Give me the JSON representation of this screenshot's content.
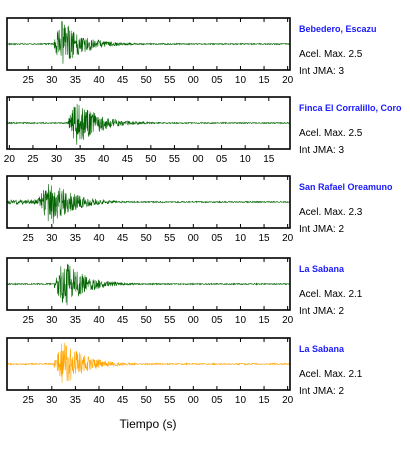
{
  "xlabel": "Tiempo (s)",
  "chart_data": [
    {
      "type": "line",
      "station": "Bebedero, Escazu",
      "acel_label": "Acel. Max. 2.5",
      "int_label": "Int JMA: 3",
      "trace_color": "#006400",
      "onset_s": 30.5,
      "peak_s": 32,
      "peak_amplitude": 1.0,
      "x_ticks": [
        "25",
        "30",
        "35",
        "40",
        "45",
        "50",
        "55",
        "00",
        "05",
        "10",
        "15",
        "20"
      ],
      "x_tick_positions_s": [
        25,
        30,
        35,
        40,
        45,
        50,
        55,
        60,
        65,
        70,
        75,
        80
      ],
      "xlim": [
        20.5,
        80.5
      ]
    },
    {
      "type": "line",
      "station": "Finca El Corralillo, Coro",
      "acel_label": "Acel. Max. 2.5",
      "int_label": "Int JMA: 3",
      "trace_color": "#006400",
      "onset_s": 32.5,
      "peak_s": 34.5,
      "peak_amplitude": 1.0,
      "x_ticks": [
        "20",
        "25",
        "30",
        "35",
        "40",
        "45",
        "50",
        "55",
        "00",
        "05",
        "10",
        "15"
      ],
      "x_tick_positions_s": [
        20,
        25,
        30,
        35,
        40,
        45,
        50,
        55,
        60,
        65,
        70,
        75
      ],
      "xlim": [
        19.5,
        79.5
      ]
    },
    {
      "type": "line",
      "station": "San Rafael Oreamuno",
      "acel_label": "Acel. Max. 2.3",
      "int_label": "Int JMA: 2",
      "trace_color": "#006400",
      "onset_s": 27,
      "peak_s": 30,
      "peak_amplitude": 1.0,
      "x_ticks": [
        "25",
        "30",
        "35",
        "40",
        "45",
        "50",
        "55",
        "00",
        "05",
        "10",
        "15",
        "20"
      ],
      "x_tick_positions_s": [
        25,
        30,
        35,
        40,
        45,
        50,
        55,
        60,
        65,
        70,
        75,
        80
      ],
      "xlim": [
        20.5,
        80.5
      ]
    },
    {
      "type": "line",
      "station": "La Sabana",
      "acel_label": "Acel. Max. 2.1",
      "int_label": "Int JMA: 2",
      "trace_color": "#006400",
      "onset_s": 30.5,
      "peak_s": 32.5,
      "peak_amplitude": 1.0,
      "x_ticks": [
        "25",
        "30",
        "35",
        "40",
        "45",
        "50",
        "55",
        "00",
        "05",
        "10",
        "15",
        "20"
      ],
      "x_tick_positions_s": [
        25,
        30,
        35,
        40,
        45,
        50,
        55,
        60,
        65,
        70,
        75,
        80
      ],
      "xlim": [
        20.5,
        80.5
      ]
    },
    {
      "type": "line",
      "station": "La Sabana",
      "acel_label": "Acel. Max. 2.1",
      "int_label": "Int JMA: 2",
      "trace_color": "#FFA500",
      "onset_s": 30.5,
      "peak_s": 32.5,
      "peak_amplitude": 1.0,
      "x_ticks": [
        "25",
        "30",
        "35",
        "40",
        "45",
        "50",
        "55",
        "00",
        "05",
        "10",
        "15",
        "20"
      ],
      "x_tick_positions_s": [
        25,
        30,
        35,
        40,
        45,
        50,
        55,
        60,
        65,
        70,
        75,
        80
      ],
      "xlim": [
        20.5,
        80.5
      ]
    }
  ]
}
